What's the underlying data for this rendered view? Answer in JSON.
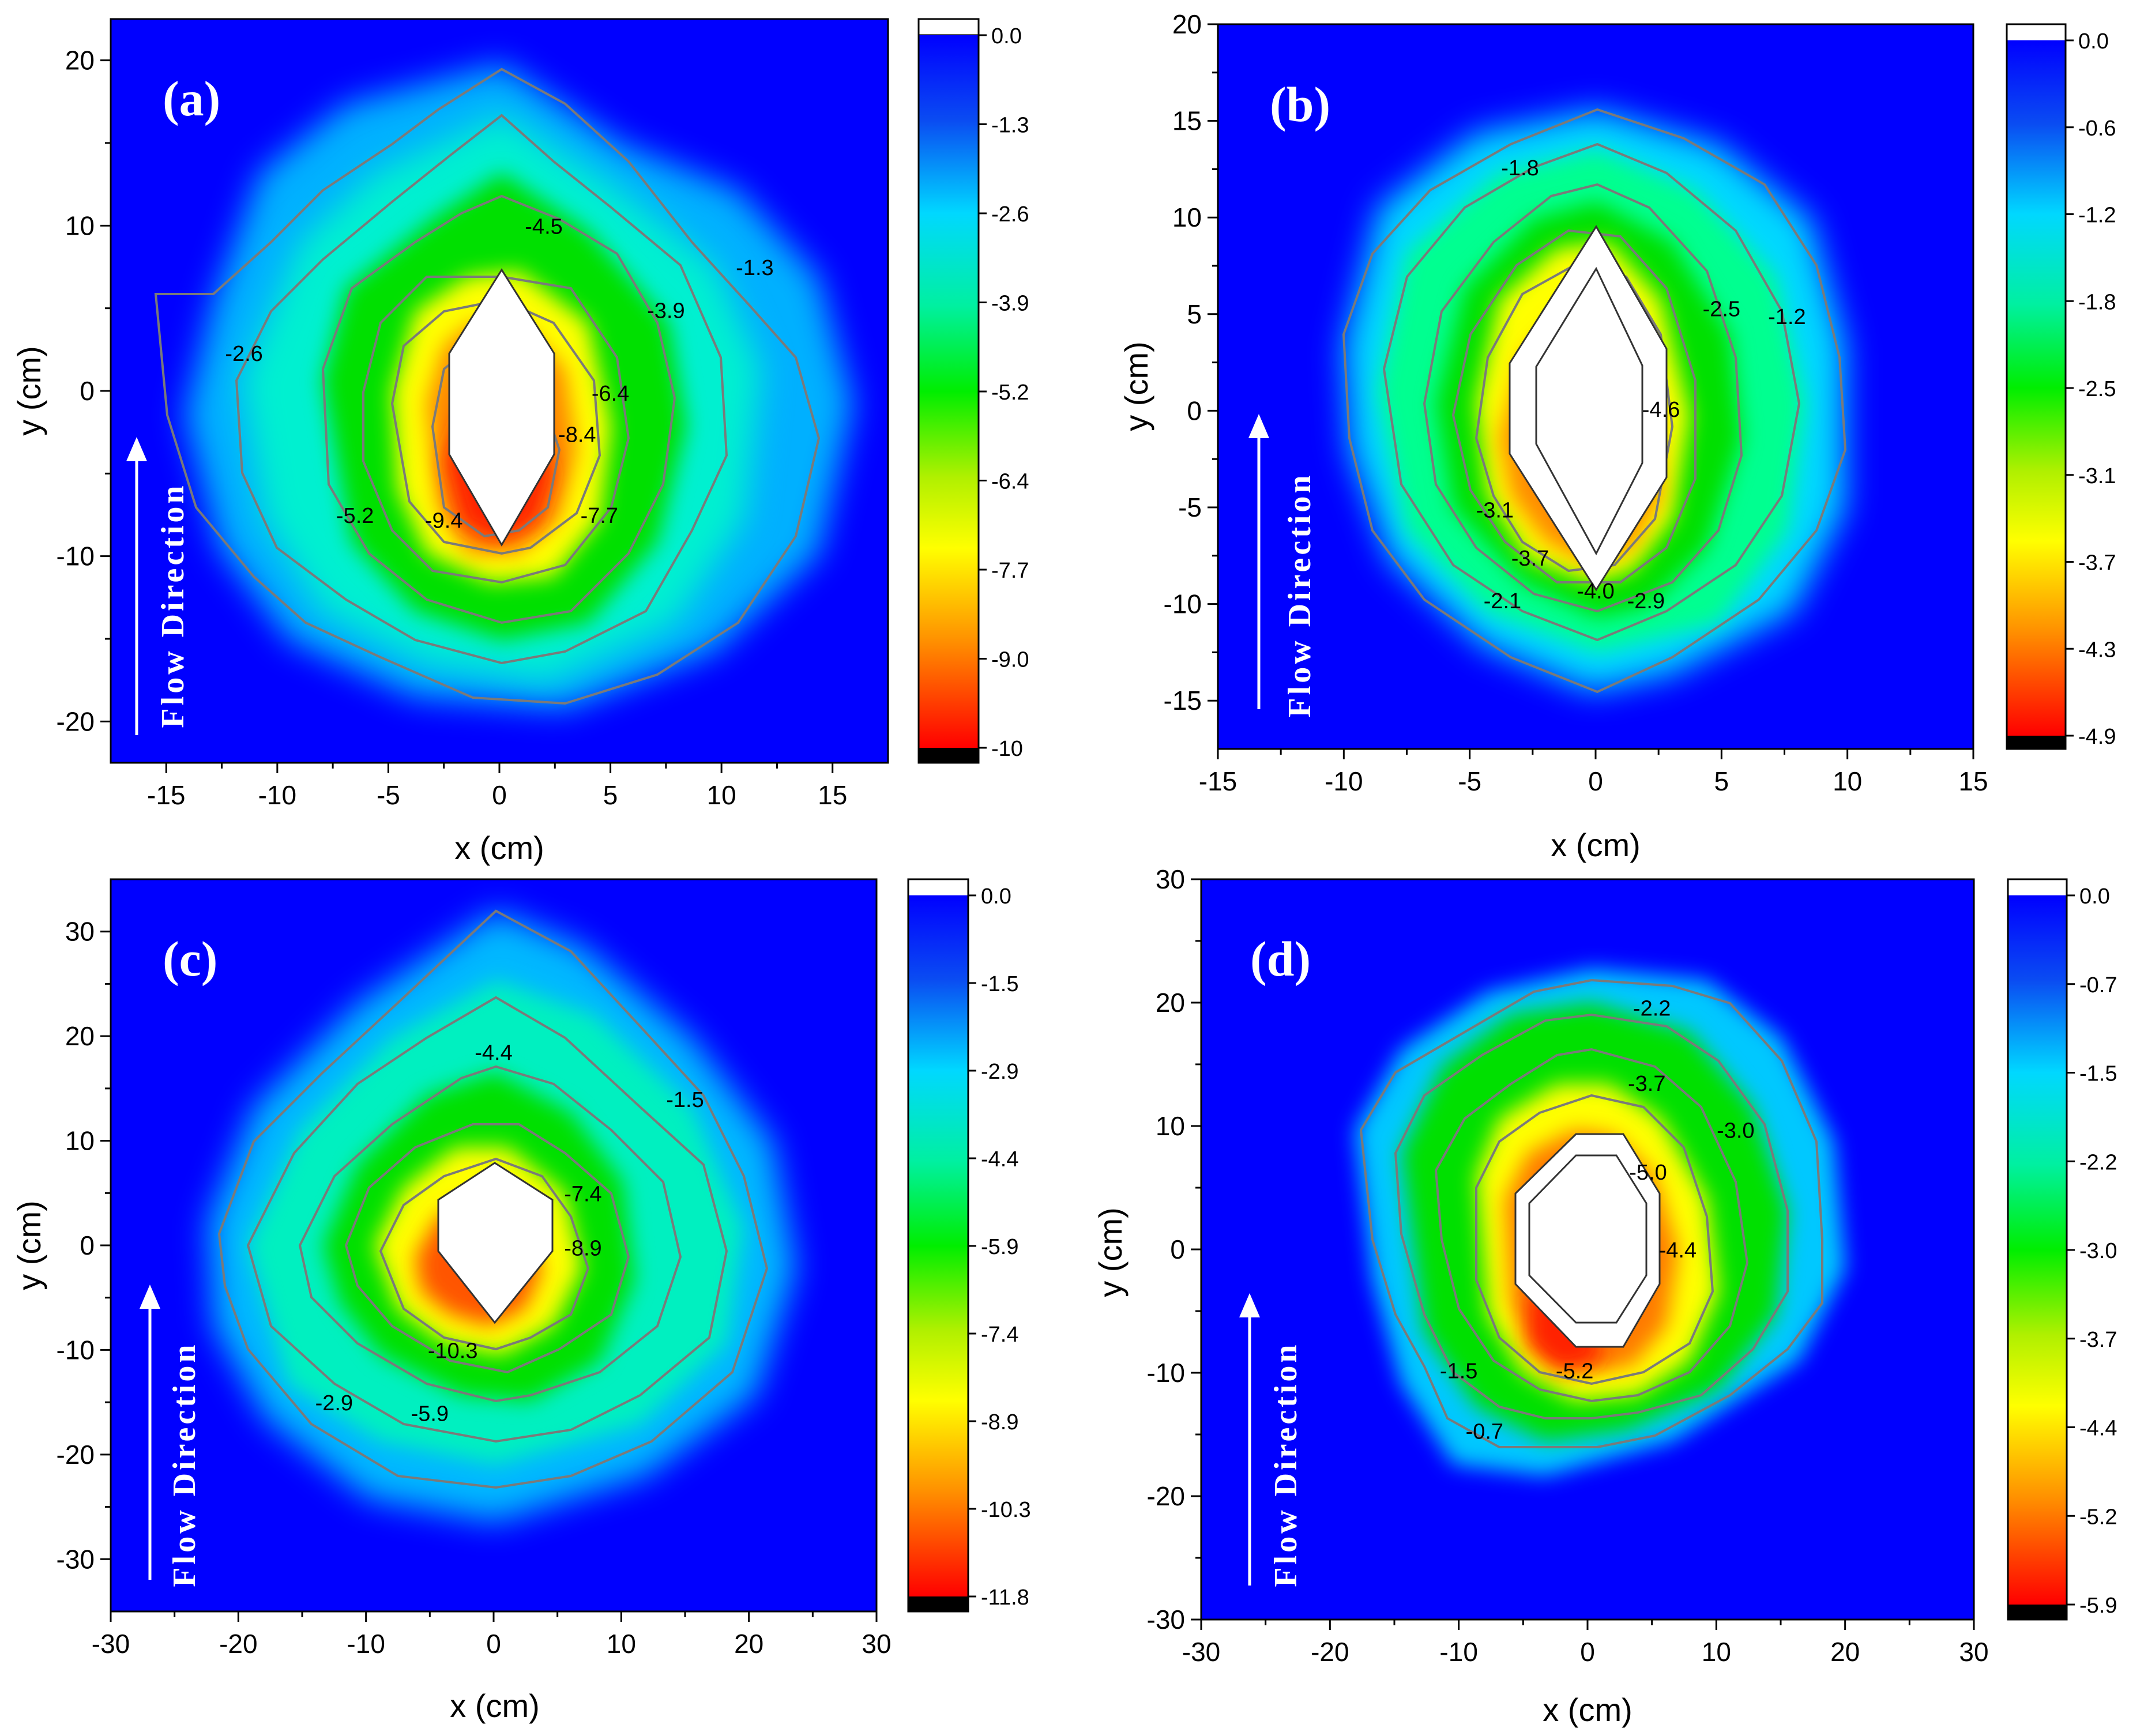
{
  "chart_data": [
    {
      "panel_label": "(a)",
      "type": "heatmap",
      "xlabel": "x (cm)",
      "ylabel": "y (cm)",
      "xlim": [
        -17.5,
        17.5
      ],
      "ylim": [
        -22.5,
        22.5
      ],
      "x_ticks": [
        "-15",
        "-10",
        "-5",
        "0",
        "5",
        "10",
        "15"
      ],
      "y_ticks": [
        "-20",
        "-10",
        "0",
        "10",
        "20"
      ],
      "colorbar_ticks": [
        "0.0",
        "-1.3",
        "-2.6",
        "-3.9",
        "-5.2",
        "-6.4",
        "-7.7",
        "-9.0",
        "-10"
      ],
      "colorbar_range": [
        -10.3,
        0.0
      ],
      "annotation": "Flow Direction",
      "contour_labels": [
        {
          "text": "-1.3",
          "x": 11.5,
          "y": 7.5
        },
        {
          "text": "-2.6",
          "x": -11.5,
          "y": 2.3
        },
        {
          "text": "-3.9",
          "x": 7.5,
          "y": 4.9
        },
        {
          "text": "-4.5",
          "x": 2.0,
          "y": 10.0
        },
        {
          "text": "-5.2",
          "x": -6.5,
          "y": -7.5
        },
        {
          "text": "-6.4",
          "x": 5.0,
          "y": -0.1
        },
        {
          "text": "-7.7",
          "x": 4.5,
          "y": -7.5
        },
        {
          "text": "-8.4",
          "x": 3.5,
          "y": -2.6
        },
        {
          "text": "-9.4",
          "x": -2.5,
          "y": -7.8
        }
      ],
      "object_outlines": 1
    },
    {
      "panel_label": "(b)",
      "type": "heatmap",
      "xlabel": "x (cm)",
      "ylabel": "y (cm)",
      "xlim": [
        -15,
        15
      ],
      "ylim": [
        -17.5,
        20
      ],
      "x_ticks": [
        "-15",
        "-10",
        "-5",
        "0",
        "5",
        "10",
        "15"
      ],
      "y_ticks": [
        "-15",
        "-10",
        "-5",
        "0",
        "5",
        "10",
        "15",
        "20"
      ],
      "colorbar_ticks": [
        "0.0",
        "-0.6",
        "-1.2",
        "-1.8",
        "-2.5",
        "-3.1",
        "-3.7",
        "-4.3",
        "-4.9"
      ],
      "colorbar_range": [
        -5.05,
        0.0
      ],
      "annotation": "Flow Direction",
      "contour_labels": [
        {
          "text": "-1.2",
          "x": 7.6,
          "y": 4.9
        },
        {
          "text": "-1.8",
          "x": -3.0,
          "y": 12.6
        },
        {
          "text": "-2.5",
          "x": 5.0,
          "y": 5.3
        },
        {
          "text": "-3.1",
          "x": -4.0,
          "y": -5.1
        },
        {
          "text": "-3.7",
          "x": -2.6,
          "y": -7.6
        },
        {
          "text": "-4.0",
          "x": 0.0,
          "y": -9.3
        },
        {
          "text": "-2.9",
          "x": 2.0,
          "y": -9.8
        },
        {
          "text": "-2.1",
          "x": -3.7,
          "y": -9.8
        },
        {
          "text": "-4.6",
          "x": 2.6,
          "y": 0.1
        }
      ],
      "object_outlines": 2
    },
    {
      "panel_label": "(c)",
      "type": "heatmap",
      "xlabel": "x (cm)",
      "ylabel": "y (cm)",
      "xlim": [
        -30,
        30
      ],
      "ylim": [
        -35,
        35
      ],
      "x_ticks": [
        "-30",
        "-20",
        "-10",
        "0",
        "10",
        "20",
        "30"
      ],
      "y_ticks": [
        "-30",
        "-20",
        "-10",
        "0",
        "10",
        "20",
        "30"
      ],
      "colorbar_ticks": [
        "0.0",
        "-1.5",
        "-2.9",
        "-4.4",
        "-5.9",
        "-7.4",
        "-8.9",
        "-10.3",
        "-11.8"
      ],
      "colorbar_range": [
        -12.1,
        0.0
      ],
      "annotation": "Flow Direction",
      "contour_labels": [
        {
          "text": "-1.5",
          "x": 15.0,
          "y": 14.0
        },
        {
          "text": "-2.9",
          "x": -12.5,
          "y": -15.0
        },
        {
          "text": "-4.4",
          "x": 0.0,
          "y": 18.5
        },
        {
          "text": "-5.9",
          "x": -5.0,
          "y": -16.0
        },
        {
          "text": "-7.4",
          "x": 7.0,
          "y": 5.0
        },
        {
          "text": "-8.9",
          "x": 7.0,
          "y": -0.2
        },
        {
          "text": "-10.3",
          "x": -3.2,
          "y": -10.0
        }
      ],
      "object_outlines": 1
    },
    {
      "panel_label": "(d)",
      "type": "heatmap",
      "xlabel": "x (cm)",
      "ylabel": "y (cm)",
      "xlim": [
        -30,
        30
      ],
      "ylim": [
        -30,
        30
      ],
      "x_ticks": [
        "-30",
        "-20",
        "-10",
        "0",
        "10",
        "20",
        "30"
      ],
      "y_ticks": [
        "-30",
        "-20",
        "-10",
        "0",
        "10",
        "20",
        "30"
      ],
      "colorbar_ticks": [
        "0.0",
        "-0.7",
        "-1.5",
        "-2.2",
        "-3.0",
        "-3.7",
        "-4.4",
        "-5.2",
        "-5.9"
      ],
      "colorbar_range": [
        -6.05,
        0.0
      ],
      "annotation": "Flow Direction",
      "contour_labels": [
        {
          "text": "-2.2",
          "x": 5.0,
          "y": 19.6
        },
        {
          "text": "-3.7",
          "x": 4.6,
          "y": 13.5
        },
        {
          "text": "-3.0",
          "x": 11.5,
          "y": 9.7
        },
        {
          "text": "-5.0",
          "x": 4.7,
          "y": 6.3
        },
        {
          "text": "-4.4",
          "x": 7.0,
          "y": 0.0
        },
        {
          "text": "-5.2",
          "x": -1.0,
          "y": -9.8
        },
        {
          "text": "-1.5",
          "x": -10.0,
          "y": -9.8
        },
        {
          "text": "-0.7",
          "x": -8.0,
          "y": -14.7
        }
      ],
      "object_outlines": 2
    }
  ]
}
